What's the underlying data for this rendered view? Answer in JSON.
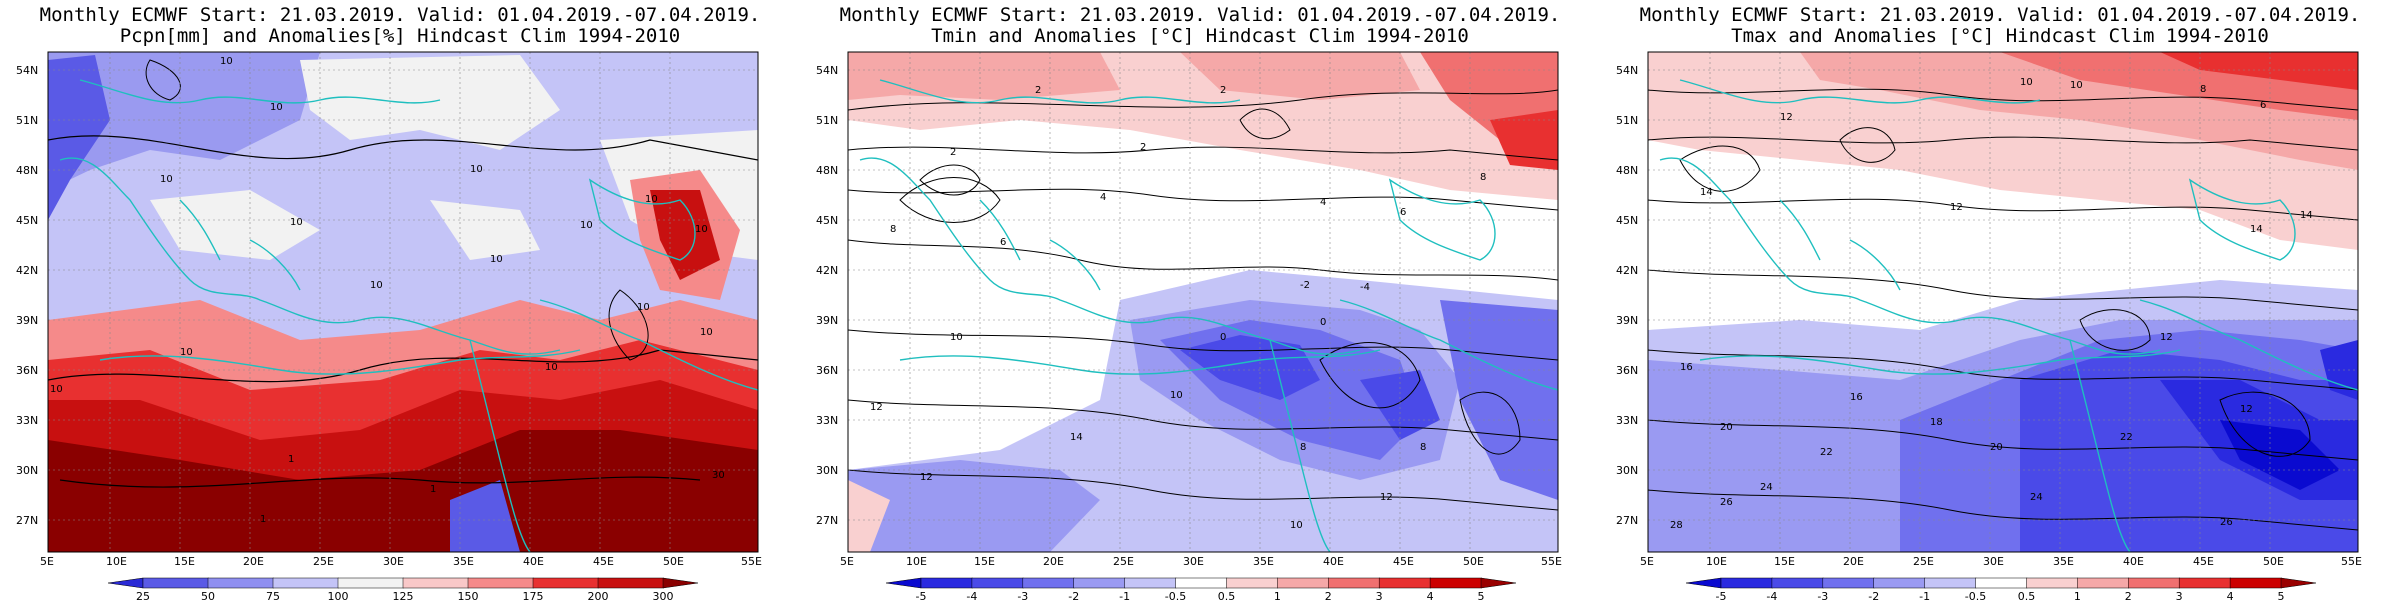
{
  "panels": [
    {
      "title_line1": "Monthly ECMWF Start: 21.03.2019. Valid: 01.04.2019.-07.04.2019.",
      "title_line2": "Pcpn[mm] and Anomalies[%] Hindcast Clim 1994-2010",
      "colorbar": {
        "labels": [
          "25",
          "50",
          "75",
          "100",
          "125",
          "150",
          "175",
          "200",
          "300"
        ],
        "colors": [
          "#2a2ad6",
          "#5a5ae6",
          "#8f8ff0",
          "#c4c4f7",
          "#f2f2f2",
          "#f9c8c8",
          "#f58a8a",
          "#e83030",
          "#c81010",
          "#8a0000"
        ]
      },
      "contour_labels": [
        "10",
        "10",
        "10",
        "10",
        "10",
        "10",
        "10",
        "10",
        "10",
        "10",
        "10",
        "10",
        "10",
        "10",
        "1",
        "1",
        "1",
        "30",
        "10"
      ]
    },
    {
      "title_line1": "Monthly ECMWF Start: 21.03.2019. Valid: 01.04.2019.-07.04.2019.",
      "title_line2": "Tmin and Anomalies [°C] Hindcast Clim 1994-2010",
      "colorbar": {
        "labels": [
          "-5",
          "-4",
          "-3",
          "-2",
          "-1",
          "-0.5",
          "0.5",
          "1",
          "2",
          "3",
          "4",
          "5"
        ],
        "colors": [
          "#0a0ad0",
          "#2a2ae0",
          "#4a4ae8",
          "#7070ee",
          "#9a9af2",
          "#c4c4f7",
          "#ffffff",
          "#f9d0d0",
          "#f5a8a8",
          "#f07070",
          "#e83030",
          "#cc0000",
          "#990000"
        ]
      },
      "contour_labels": [
        "2",
        "2",
        "2",
        "2",
        "4",
        "4",
        "6",
        "6",
        "8",
        "8",
        "0",
        "0",
        "10",
        "10",
        "12",
        "12",
        "14",
        "10",
        "12",
        "-2",
        "-4",
        "8",
        "8"
      ]
    },
    {
      "title_line1": "Monthly ECMWF Start: 21.03.2019. Valid: 01.04.2019.-07.04.2019.",
      "title_line2": "Tmax and Anomalies [°C] Hindcast Clim 1994-2010",
      "colorbar": {
        "labels": [
          "-5",
          "-4",
          "-3",
          "-2",
          "-1",
          "-0.5",
          "0.5",
          "1",
          "2",
          "3",
          "4",
          "5"
        ],
        "colors": [
          "#0a0ad0",
          "#2a2ae0",
          "#4a4ae8",
          "#7070ee",
          "#9a9af2",
          "#c4c4f7",
          "#ffffff",
          "#f9d0d0",
          "#f5a8a8",
          "#f07070",
          "#e83030",
          "#cc0000",
          "#990000"
        ]
      },
      "contour_labels": [
        "10",
        "12",
        "12",
        "14",
        "14",
        "16",
        "16",
        "18",
        "20",
        "20",
        "22",
        "22",
        "24",
        "24",
        "26",
        "26",
        "12",
        "14",
        "12",
        "10",
        "8",
        "6",
        "28"
      ]
    }
  ],
  "axes": {
    "lat_labels": [
      "54N",
      "51N",
      "48N",
      "45N",
      "42N",
      "39N",
      "36N",
      "33N",
      "30N",
      "27N"
    ],
    "lon_labels": [
      "5E",
      "10E",
      "15E",
      "20E",
      "25E",
      "30E",
      "35E",
      "40E",
      "45E",
      "50E",
      "55E"
    ]
  }
}
